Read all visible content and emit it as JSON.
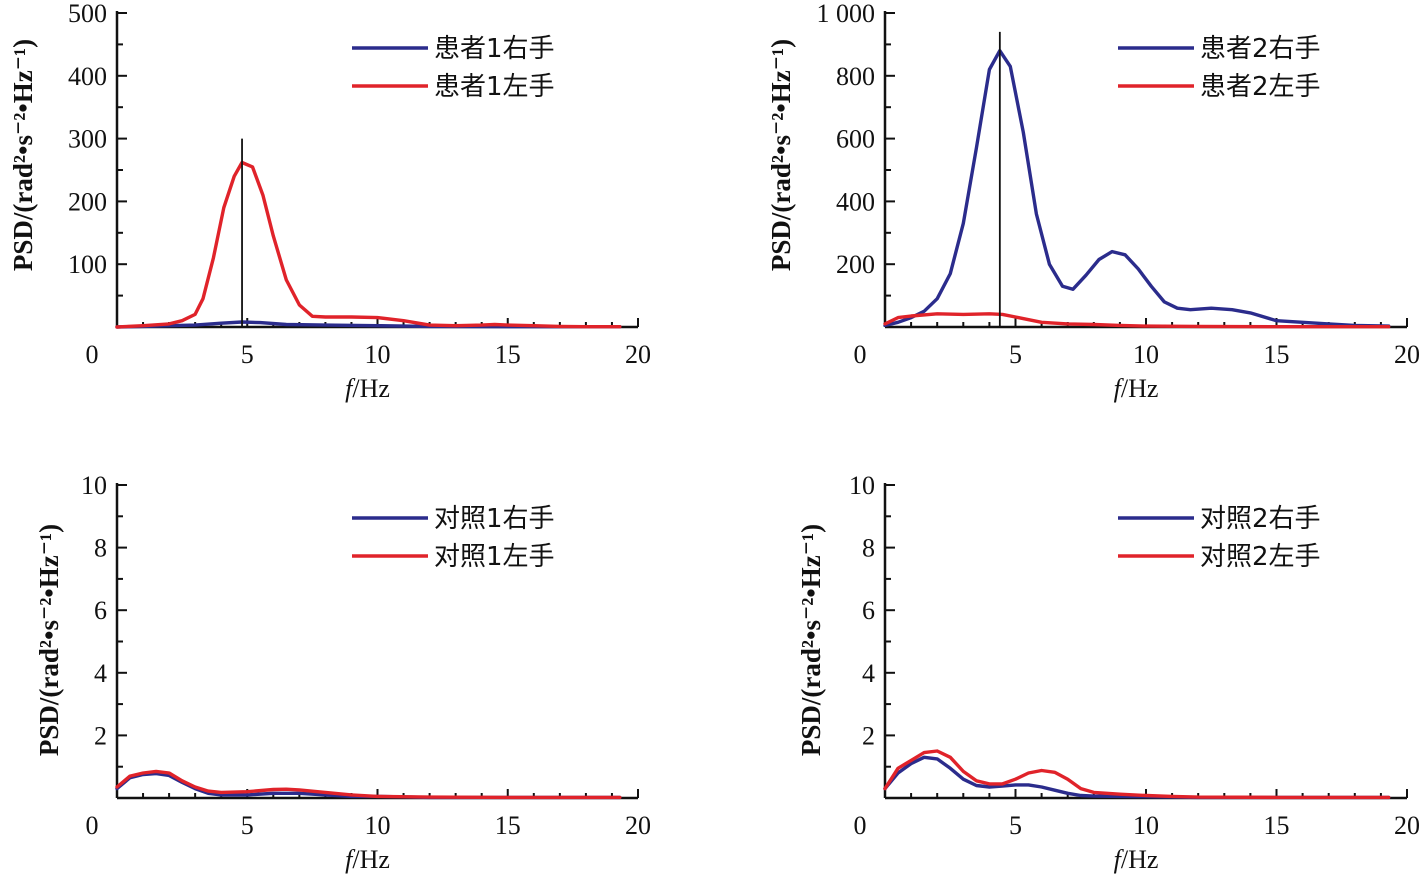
{
  "colors": {
    "blue": "#2b2c8c",
    "red": "#e0232a",
    "axis": "#111111"
  },
  "chart_data": [
    {
      "type": "line",
      "xlabel": {
        "italic": "f",
        "rest": "/Hz"
      },
      "ylabel": "PSD/(rad²•s⁻²•Hz⁻¹)",
      "xlim": [
        0,
        20
      ],
      "ylim": [
        0,
        500
      ],
      "xticks": [
        "0",
        "5",
        "10",
        "15",
        "20"
      ],
      "xtick_values": [
        0,
        5,
        10,
        15,
        20
      ],
      "yticks": [
        "100",
        "200",
        "300",
        "400",
        "500"
      ],
      "ytick_values": [
        100,
        200,
        300,
        400,
        500
      ],
      "marker_x": 4.8,
      "marker_top": 300,
      "series": [
        {
          "name": "患者1右手",
          "color": "#2b2c8c",
          "x": [
            0,
            1,
            2,
            3,
            4,
            4.8,
            5.5,
            6.5,
            8,
            10,
            12,
            15,
            19.3
          ],
          "y": [
            0,
            1,
            2,
            3,
            6,
            8,
            7,
            4,
            3,
            2,
            1,
            0.5,
            0.5
          ]
        },
        {
          "name": "患者1左手",
          "color": "#e0232a",
          "x": [
            0,
            1,
            2,
            2.5,
            3,
            3.3,
            3.7,
            4.1,
            4.5,
            4.8,
            5.2,
            5.6,
            6,
            6.5,
            7,
            7.5,
            8,
            9,
            10,
            11,
            12,
            13,
            14,
            14.5,
            15,
            16,
            17,
            18,
            19.3
          ],
          "y": [
            0,
            2,
            5,
            10,
            20,
            45,
            110,
            190,
            240,
            262,
            255,
            210,
            145,
            75,
            35,
            17,
            16,
            16,
            15,
            10,
            3,
            2,
            3,
            4,
            3,
            2,
            1,
            0.5,
            0.5
          ]
        }
      ]
    },
    {
      "type": "line",
      "xlabel": {
        "italic": "f",
        "rest": "/Hz"
      },
      "ylabel": "PSD/(rad²•s⁻²•Hz⁻¹)",
      "xlim": [
        0,
        20
      ],
      "ylim": [
        0,
        1000
      ],
      "xticks": [
        "0",
        "5",
        "10",
        "15",
        "20"
      ],
      "xtick_values": [
        0,
        5,
        10,
        15,
        20
      ],
      "yticks": [
        "200",
        "400",
        "600",
        "800",
        "1 000"
      ],
      "ytick_values": [
        200,
        400,
        600,
        800,
        1000
      ],
      "marker_x": 4.4,
      "marker_top": 940,
      "series": [
        {
          "name": "患者2右手",
          "color": "#2b2c8c",
          "x": [
            0,
            0.5,
            1,
            1.5,
            2,
            2.5,
            3,
            3.5,
            4,
            4.4,
            4.8,
            5.3,
            5.8,
            6.3,
            6.8,
            7.2,
            7.7,
            8.2,
            8.7,
            9.2,
            9.7,
            10.2,
            10.7,
            11.2,
            11.7,
            12.5,
            13.3,
            14,
            15,
            16,
            17,
            18,
            19.3
          ],
          "y": [
            5,
            15,
            30,
            50,
            90,
            170,
            330,
            570,
            820,
            880,
            830,
            620,
            360,
            200,
            130,
            120,
            165,
            215,
            240,
            230,
            185,
            130,
            80,
            60,
            55,
            60,
            55,
            45,
            20,
            15,
            10,
            5,
            3
          ]
        },
        {
          "name": "患者2左手",
          "color": "#e0232a",
          "x": [
            0,
            0.5,
            1,
            2,
            3,
            4,
            4.5,
            5,
            6,
            7,
            8,
            9,
            10,
            12,
            15,
            19.3
          ],
          "y": [
            10,
            30,
            35,
            42,
            40,
            42,
            40,
            32,
            15,
            10,
            8,
            5,
            3,
            2,
            1,
            1
          ]
        }
      ]
    },
    {
      "type": "line",
      "xlabel": {
        "italic": "f",
        "rest": "/Hz"
      },
      "ylabel": "PSD/(rad²•s⁻²•Hz⁻¹)",
      "xlim": [
        0,
        20
      ],
      "ylim": [
        0,
        10
      ],
      "xticks": [
        "0",
        "5",
        "10",
        "15",
        "20"
      ],
      "xtick_values": [
        0,
        5,
        10,
        15,
        20
      ],
      "yticks": [
        "2",
        "4",
        "6",
        "8",
        "10"
      ],
      "ytick_values": [
        2,
        4,
        6,
        8,
        10
      ],
      "series": [
        {
          "name": "对照1右手",
          "color": "#2b2c8c",
          "x": [
            0,
            0.5,
            1,
            1.5,
            2,
            2.5,
            3,
            3.5,
            4,
            5,
            6,
            7,
            8,
            9,
            10,
            12,
            15,
            19.3
          ],
          "y": [
            0.3,
            0.65,
            0.75,
            0.78,
            0.72,
            0.5,
            0.3,
            0.15,
            0.1,
            0.1,
            0.15,
            0.15,
            0.1,
            0.05,
            0.05,
            0.02,
            0.02,
            0.02
          ]
        },
        {
          "name": "对照1左手",
          "color": "#e0232a",
          "x": [
            0,
            0.5,
            1,
            1.5,
            2,
            2.5,
            3,
            3.5,
            4,
            5,
            6,
            6.5,
            7,
            8,
            9,
            10,
            12,
            15,
            19.3
          ],
          "y": [
            0.35,
            0.7,
            0.8,
            0.85,
            0.8,
            0.55,
            0.35,
            0.22,
            0.18,
            0.2,
            0.27,
            0.28,
            0.26,
            0.18,
            0.1,
            0.05,
            0.03,
            0.02,
            0.02
          ]
        }
      ]
    },
    {
      "type": "line",
      "xlabel": {
        "italic": "f",
        "rest": "/Hz"
      },
      "ylabel": "PSD/(rad²•s⁻²•Hz⁻¹)",
      "xlim": [
        0,
        20
      ],
      "ylim": [
        0,
        10
      ],
      "xticks": [
        "0",
        "5",
        "10",
        "15",
        "20"
      ],
      "xtick_values": [
        0,
        5,
        10,
        15,
        20
      ],
      "yticks": [
        "2",
        "4",
        "6",
        "8",
        "10"
      ],
      "ytick_values": [
        2,
        4,
        6,
        8,
        10
      ],
      "series": [
        {
          "name": "对照2右手",
          "color": "#2b2c8c",
          "x": [
            0,
            0.5,
            1,
            1.5,
            2,
            2.5,
            3,
            3.5,
            4,
            4.5,
            5,
            5.5,
            6,
            6.5,
            7,
            7.5,
            8,
            9,
            10,
            11,
            12,
            15,
            19.3
          ],
          "y": [
            0.3,
            0.8,
            1.1,
            1.3,
            1.25,
            0.95,
            0.6,
            0.4,
            0.35,
            0.38,
            0.42,
            0.42,
            0.35,
            0.25,
            0.15,
            0.08,
            0.06,
            0.05,
            0.04,
            0.03,
            0.02,
            0.02,
            0.02
          ]
        },
        {
          "name": "对照2左手",
          "color": "#e0232a",
          "x": [
            0,
            0.5,
            1,
            1.5,
            2,
            2.5,
            3,
            3.5,
            4,
            4.5,
            5,
            5.5,
            6,
            6.5,
            7,
            7.5,
            8,
            9,
            10,
            11,
            12,
            15,
            19.3
          ],
          "y": [
            0.3,
            0.95,
            1.2,
            1.45,
            1.5,
            1.3,
            0.85,
            0.55,
            0.45,
            0.45,
            0.6,
            0.8,
            0.88,
            0.82,
            0.6,
            0.3,
            0.18,
            0.12,
            0.08,
            0.05,
            0.03,
            0.02,
            0.02
          ]
        }
      ]
    }
  ]
}
